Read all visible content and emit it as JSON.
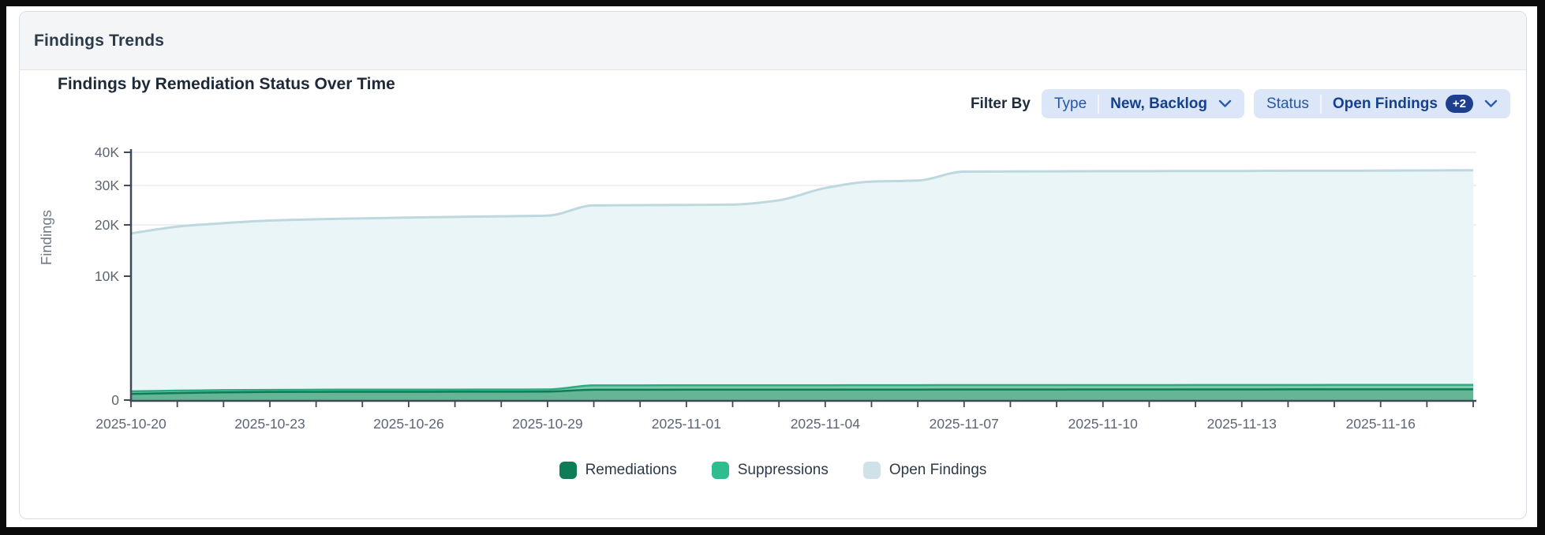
{
  "window": {
    "title": "Findings Trends"
  },
  "filters": {
    "filter_by_label": "Filter By",
    "type": {
      "label": "Type",
      "value": "New, Backlog"
    },
    "status": {
      "label": "Status",
      "value": "Open Findings",
      "extra_count": "+2"
    }
  },
  "chart_data": {
    "type": "area",
    "title": "Findings by Remediation Status Over Time",
    "ylabel": "Findings",
    "y_scale": "sqrt",
    "ylim": [
      0,
      40000
    ],
    "y_ticks": [
      0,
      10000,
      20000,
      30000,
      40000
    ],
    "y_tick_labels": [
      "0",
      "10K",
      "20K",
      "30K",
      "40K"
    ],
    "grid": true,
    "legend_position": "bottom",
    "x_label_every": 3,
    "x": [
      "2025-10-20",
      "2025-10-21",
      "2025-10-22",
      "2025-10-23",
      "2025-10-24",
      "2025-10-25",
      "2025-10-26",
      "2025-10-27",
      "2025-10-28",
      "2025-10-29",
      "2025-10-30",
      "2025-10-31",
      "2025-11-01",
      "2025-11-02",
      "2025-11-03",
      "2025-11-04",
      "2025-11-05",
      "2025-11-06",
      "2025-11-07",
      "2025-11-08",
      "2025-11-09",
      "2025-11-10",
      "2025-11-11",
      "2025-11-12",
      "2025-11-13",
      "2025-11-14",
      "2025-11-15",
      "2025-11-16",
      "2025-11-17",
      "2025-11-18"
    ],
    "series": [
      {
        "name": "Remediations",
        "color": "#0e7d57",
        "stroke": "#0e7d57",
        "fill": "#0e7d57",
        "fill_opacity": 0.25,
        "values": [
          25,
          32,
          38,
          42,
          44,
          45,
          45,
          46,
          46,
          47,
          70,
          70,
          71,
          71,
          71,
          72,
          72,
          72,
          73,
          73,
          73,
          74,
          74,
          74,
          74,
          75,
          75,
          75,
          75,
          75
        ]
      },
      {
        "name": "Suppressions",
        "color": "#2fbd8f",
        "stroke": "#2bab80",
        "fill": "#82c9ab",
        "fill_opacity": 1,
        "values": [
          50,
          58,
          64,
          68,
          70,
          71,
          72,
          72,
          73,
          74,
          140,
          141,
          142,
          142,
          143,
          144,
          145,
          145,
          146,
          146,
          147,
          147,
          147,
          148,
          148,
          148,
          149,
          149,
          150,
          150
        ]
      },
      {
        "name": "Open Findings",
        "color": "#cfe2e7",
        "stroke": "#bdd8de",
        "fill": "#e8f4f7",
        "fill_opacity": 0.9,
        "values": [
          18100,
          19600,
          20400,
          21000,
          21300,
          21500,
          21700,
          21850,
          22000,
          22150,
          24700,
          24750,
          24800,
          24900,
          26000,
          29300,
          31100,
          31400,
          34000,
          34050,
          34100,
          34150,
          34150,
          34200,
          34200,
          34250,
          34250,
          34300,
          34350,
          34400
        ]
      }
    ]
  }
}
